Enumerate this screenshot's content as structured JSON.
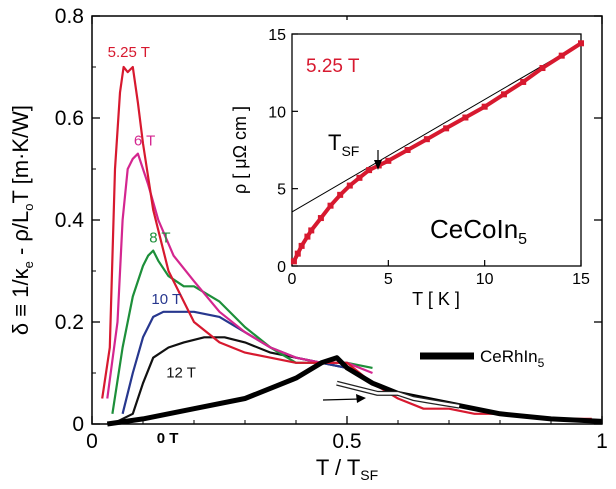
{
  "chart_data": [
    {
      "type": "line",
      "xlabel": "T / T",
      "xlabel_sub": "SF",
      "ylabel": "δ ≡ 1/κ - ρ/L T  [m·K/W]",
      "ylabel_parts": {
        "a": "δ ≡ 1/κ",
        "sub_e": "e",
        "b": " - ρ/L",
        "sub_o": "o",
        "c": "T  [m·K/W]"
      },
      "xlim": [
        0,
        1
      ],
      "ylim": [
        0,
        0.8
      ],
      "xticks": [
        "0",
        "0.5",
        "1"
      ],
      "yticks": [
        "0",
        "0.2",
        "0.4",
        "0.6",
        "0.8"
      ],
      "legend": {
        "label": "CeRhIn",
        "label_sub": "5"
      },
      "series": [
        {
          "name": "5.25 T",
          "color": "#d7192f",
          "x": [
            0.02,
            0.035,
            0.045,
            0.055,
            0.062,
            0.07,
            0.08,
            0.09,
            0.1,
            0.12,
            0.15,
            0.2,
            0.25,
            0.3,
            0.35,
            0.4,
            0.45,
            0.5,
            0.55,
            0.6,
            0.65,
            0.7,
            0.75,
            0.8,
            0.85,
            0.9,
            0.95,
            0.98
          ],
          "y": [
            0.05,
            0.15,
            0.5,
            0.65,
            0.7,
            0.69,
            0.7,
            0.63,
            0.55,
            0.42,
            0.3,
            0.2,
            0.16,
            0.14,
            0.13,
            0.12,
            0.12,
            0.12,
            0.08,
            0.05,
            0.03,
            0.03,
            0.02,
            0.02,
            0.015,
            0.01,
            0.01,
            0.01
          ]
        },
        {
          "name": "6 T",
          "color": "#d4268f",
          "x": [
            0.03,
            0.05,
            0.06,
            0.07,
            0.08,
            0.09,
            0.1,
            0.11,
            0.13,
            0.16,
            0.2,
            0.25,
            0.3,
            0.35,
            0.4,
            0.45,
            0.5,
            0.55
          ],
          "y": [
            0.05,
            0.2,
            0.4,
            0.5,
            0.52,
            0.53,
            0.5,
            0.47,
            0.4,
            0.33,
            0.28,
            0.22,
            0.18,
            0.15,
            0.13,
            0.12,
            0.12,
            0.1
          ]
        },
        {
          "name": "8 T",
          "color": "#1d8f3a",
          "x": [
            0.04,
            0.06,
            0.08,
            0.1,
            0.11,
            0.12,
            0.13,
            0.15,
            0.18,
            0.2,
            0.25,
            0.3,
            0.35,
            0.4,
            0.45,
            0.5,
            0.55
          ],
          "y": [
            0.02,
            0.15,
            0.25,
            0.31,
            0.33,
            0.34,
            0.32,
            0.29,
            0.27,
            0.27,
            0.24,
            0.19,
            0.15,
            0.12,
            0.12,
            0.12,
            0.11
          ]
        },
        {
          "name": "10 T",
          "color": "#27378e",
          "x": [
            0.06,
            0.08,
            0.1,
            0.12,
            0.14,
            0.16,
            0.2,
            0.25,
            0.3,
            0.35,
            0.4,
            0.45,
            0.5
          ],
          "y": [
            0.02,
            0.1,
            0.17,
            0.21,
            0.22,
            0.22,
            0.22,
            0.21,
            0.18,
            0.15,
            0.13,
            0.12,
            0.11
          ]
        },
        {
          "name": "12 T",
          "color": "#111111",
          "x": [
            0.04,
            0.08,
            0.1,
            0.12,
            0.15,
            0.18,
            0.22,
            0.26,
            0.3,
            0.35,
            0.4,
            0.45,
            0.5
          ],
          "y": [
            0.0,
            0.02,
            0.08,
            0.13,
            0.15,
            0.16,
            0.17,
            0.17,
            0.16,
            0.14,
            0.13,
            0.12,
            0.11
          ]
        },
        {
          "name": "0 T",
          "color": "#ffffff",
          "outline": "#222222",
          "x": [
            0.48,
            0.52,
            0.56,
            0.6,
            0.63,
            0.66,
            0.69,
            0.72
          ],
          "y": [
            0.08,
            0.07,
            0.06,
            0.06,
            0.05,
            0.045,
            0.04,
            0.035
          ]
        },
        {
          "name": "CeRhIn5",
          "color": "#000000",
          "thick": true,
          "x": [
            0.03,
            0.1,
            0.2,
            0.3,
            0.4,
            0.45,
            0.48,
            0.5,
            0.55,
            0.6,
            0.7,
            0.8,
            0.9,
            1.0
          ],
          "y": [
            0.0,
            0.01,
            0.03,
            0.05,
            0.09,
            0.12,
            0.13,
            0.11,
            0.08,
            0.06,
            0.04,
            0.02,
            0.01,
            0.005
          ]
        }
      ],
      "labels": [
        {
          "text": "5.25 T",
          "series": 0
        },
        {
          "text": "6 T",
          "series": 1
        },
        {
          "text": "8 T",
          "series": 2
        },
        {
          "text": "10 T",
          "series": 3
        },
        {
          "text": "12 T",
          "series": 4
        },
        {
          "text": "0 T",
          "series": 5
        }
      ]
    },
    {
      "type": "line",
      "inset": true,
      "xlabel": "T [ K ]",
      "ylabel": "ρ [ μΩ cm ]",
      "xlim": [
        0,
        15
      ],
      "ylim": [
        0,
        15
      ],
      "xticks": [
        "0",
        "5",
        "10",
        "15"
      ],
      "yticks": [
        "0",
        "5",
        "10",
        "15"
      ],
      "field_label": "5.25 T",
      "compound": {
        "text": "CeCoIn",
        "sub": "5"
      },
      "annotation": {
        "text": "T",
        "sub": "SF"
      },
      "series": [
        {
          "name": "data",
          "color": "#d7192f",
          "x": [
            0.1,
            0.3,
            0.5,
            0.8,
            1.0,
            1.5,
            2.0,
            2.5,
            3.0,
            3.5,
            4.0,
            4.5,
            5.0,
            6.0,
            7.0,
            8.0,
            9.0,
            10.0,
            11.0,
            12.0,
            13.0,
            14.0,
            15.0
          ],
          "y": [
            0.3,
            0.8,
            1.3,
            1.9,
            2.3,
            3.1,
            3.9,
            4.6,
            5.2,
            5.7,
            6.2,
            6.5,
            6.8,
            7.5,
            8.2,
            8.9,
            9.6,
            10.3,
            11.1,
            11.9,
            12.8,
            13.6,
            14.4
          ]
        },
        {
          "name": "fit",
          "color": "#000000",
          "x": [
            0,
            15
          ],
          "y": [
            3.5,
            14.4
          ]
        }
      ]
    }
  ]
}
